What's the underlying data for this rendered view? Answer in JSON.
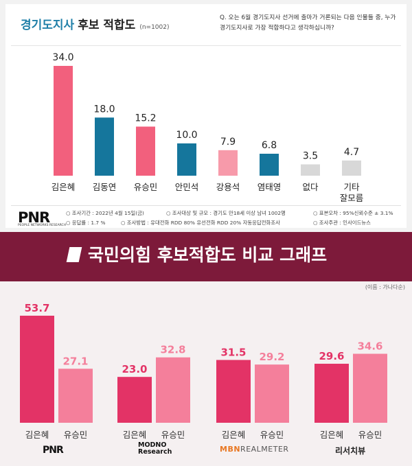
{
  "top": {
    "title_prefix": "경기도지사",
    "title_suffix": "후보 적합도",
    "sample": "(n=1002)",
    "question": "Q. 오는 6월 경기도지사 선거에 출마가 거론되는 다음 인물들 중, 누가 경기도지사로 가장 적합하다고 생각하십니까?",
    "logo": "PNR",
    "logo_sub": "PEOPLE NETWORKS RESEARCH",
    "notes": [
      "○ 조사기간 : 2022년 4월 15일(금)",
      "○ 조사대상 및 규모 : 경기도 만18세 이상 남녀 1002명",
      "○ 표본오차 : 95%신뢰수준 ± 3.1%",
      "○ 응답률 : 1.7 %",
      "○ 조사방법 : 유대전화 RDD 80% 유선전화 RDD 20% 자동응답전화조사",
      "○ 조사주관 : 인사이드뉴스"
    ]
  },
  "banner": {
    "title": "국민의힘 후보적합도 비교 그래프",
    "note": "(이름 : 가나다순)"
  },
  "colors": {
    "pink": "#f2607d",
    "blue": "#15769c",
    "light_pink": "#f79aaa",
    "gray": "#d8d8d8",
    "crimson": "#e33366",
    "soft_pink": "#f47f9b"
  },
  "chart_data": [
    {
      "type": "bar",
      "title": "경기도지사 후보 적합도",
      "categories": [
        "김은혜",
        "김동연",
        "유승민",
        "안민석",
        "강용석",
        "염태영",
        "없다",
        "기타\n잘모름"
      ],
      "values": [
        34.0,
        18.0,
        15.2,
        10.0,
        7.9,
        6.8,
        3.5,
        4.7
      ],
      "value_labels": [
        "34.0",
        "18.0",
        "15.2",
        "10.0",
        "7.9",
        "6.8",
        "3.5",
        "4.7"
      ],
      "bar_colors": [
        "pink",
        "blue",
        "pink",
        "blue",
        "light_pink",
        "blue",
        "gray",
        "gray"
      ],
      "ylim": [
        0,
        40
      ]
    },
    {
      "type": "bar",
      "title": "국민의힘 후보적합도 비교 그래프",
      "groups": [
        {
          "source": "PNR",
          "labels": [
            "김은혜",
            "유승민"
          ],
          "values": [
            53.7,
            27.1
          ],
          "value_labels": [
            "53.7",
            "27.1"
          ]
        },
        {
          "source": "MODNO Research",
          "labels": [
            "김은혜",
            "유승민"
          ],
          "values": [
            23.0,
            32.8
          ],
          "value_labels": [
            "23.0",
            "32.8"
          ]
        },
        {
          "source": "MBN REALMETER",
          "labels": [
            "김은혜",
            "유승민"
          ],
          "values": [
            31.5,
            29.2
          ],
          "value_labels": [
            "31.5",
            "29.2"
          ]
        },
        {
          "source": "리서치뷰",
          "labels": [
            "김은혜",
            "유승민"
          ],
          "values": [
            29.6,
            34.6
          ],
          "value_labels": [
            "29.6",
            "34.6"
          ]
        }
      ],
      "ylim": [
        0,
        60
      ]
    }
  ],
  "sources": {
    "pnr": "PNR",
    "modno_1": "MODNO",
    "modno_2": "Research",
    "mbn": "MBN",
    "realmeter": "REALMETER",
    "researchview": "리서치뷰"
  }
}
